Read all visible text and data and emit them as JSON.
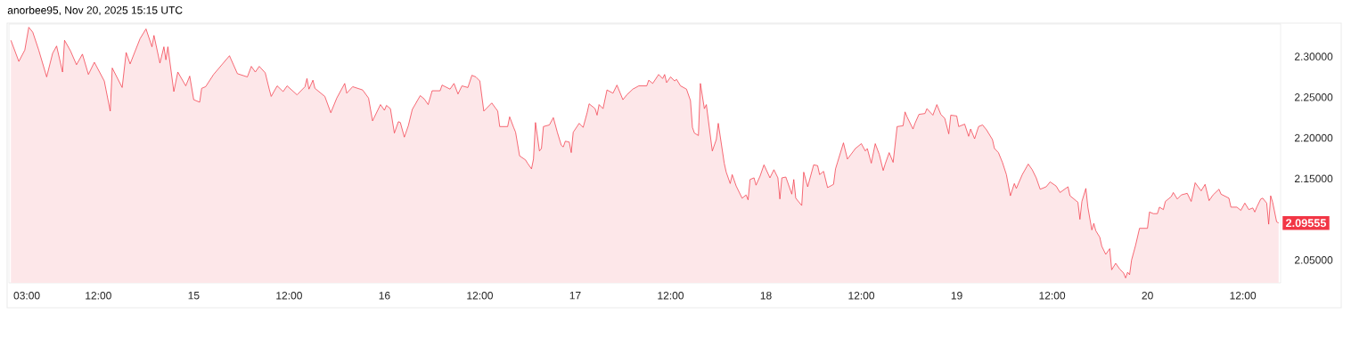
{
  "chart_data": {
    "type": "area",
    "annotations": [
      "anorbee95, Nov 20, 2025 15:15 UTC",
      {
        "text": "2.09555",
        "x": "2025-11-20T16:30",
        "y": 2.09555
      }
    ],
    "color": "#f23645",
    "x": [
      "2025-11-14T01:00",
      "2025-11-14T02:00",
      "2025-11-14T02:45",
      "2025-11-14T03:15",
      "2025-11-14T03:45",
      "2025-11-14T04:30",
      "2025-11-14T05:30",
      "2025-11-14T06:15",
      "2025-11-14T06:45",
      "2025-11-14T07:30",
      "2025-11-14T07:45",
      "2025-11-14T08:30",
      "2025-11-14T09:15",
      "2025-11-14T10:00",
      "2025-11-14T10:45",
      "2025-11-14T11:30",
      "2025-11-14T12:45",
      "2025-11-14T13:30",
      "2025-11-14T13:45",
      "2025-11-14T15:00",
      "2025-11-14T15:30",
      "2025-11-14T16:00",
      "2025-11-14T17:15",
      "2025-11-14T18:00",
      "2025-11-14T18:45",
      "2025-11-14T19:00",
      "2025-11-14T19:45",
      "2025-11-14T20:15",
      "2025-11-14T20:30",
      "2025-11-14T20:45",
      "2025-11-14T21:30",
      "2025-11-14T22:00",
      "2025-11-14T23:00",
      "2025-11-14T23:30",
      "2025-11-15T00:00",
      "2025-11-15T00:45",
      "2025-11-15T01:00",
      "2025-11-15T01:30",
      "2025-11-15T02:30",
      "2025-11-15T04:30",
      "2025-11-15T05:30",
      "2025-11-15T06:45",
      "2025-11-15T07:15",
      "2025-11-15T07:45",
      "2025-11-15T08:15",
      "2025-11-15T09:00",
      "2025-11-15T09:30",
      "2025-11-15T09:45",
      "2025-11-15T10:30",
      "2025-11-15T11:15",
      "2025-11-15T11:45",
      "2025-11-15T13:00",
      "2025-11-15T14:00",
      "2025-11-15T14:15",
      "2025-11-15T14:30",
      "2025-11-15T15:00",
      "2025-11-15T15:15",
      "2025-11-15T16:30",
      "2025-11-15T17:15",
      "2025-11-15T18:00",
      "2025-11-15T19:00",
      "2025-11-15T19:15",
      "2025-11-15T20:00",
      "2025-11-15T21:15",
      "2025-11-15T22:00",
      "2025-11-15T22:30",
      "2025-11-15T23:30",
      "2025-11-16T00:00",
      "2025-11-16T00:15",
      "2025-11-16T00:45",
      "2025-11-16T01:15",
      "2025-11-16T01:45",
      "2025-11-16T02:00",
      "2025-11-16T02:30",
      "2025-11-16T03:00",
      "2025-11-16T03:30",
      "2025-11-16T04:30",
      "2025-11-16T05:00",
      "2025-11-16T05:30",
      "2025-11-16T06:00",
      "2025-11-16T07:00",
      "2025-11-16T07:15",
      "2025-11-16T08:15",
      "2025-11-16T08:45",
      "2025-11-16T09:15",
      "2025-11-16T09:45",
      "2025-11-16T10:30",
      "2025-11-16T11:00",
      "2025-11-16T11:30",
      "2025-11-16T12:00",
      "2025-11-16T12:30",
      "2025-11-16T13:30",
      "2025-11-16T14:15",
      "2025-11-16T14:30",
      "2025-11-16T15:30",
      "2025-11-16T15:45",
      "2025-11-16T16:15",
      "2025-11-16T16:30",
      "2025-11-16T17:00",
      "2025-11-16T17:45",
      "2025-11-16T18:00",
      "2025-11-16T18:30",
      "2025-11-16T18:45",
      "2025-11-16T19:00",
      "2025-11-16T19:30",
      "2025-11-16T19:45",
      "2025-11-16T20:00",
      "2025-11-16T20:45",
      "2025-11-16T21:15",
      "2025-11-16T21:45",
      "2025-11-16T22:15",
      "2025-11-16T22:30",
      "2025-11-16T22:45",
      "2025-11-16T23:15",
      "2025-11-16T23:30",
      "2025-11-16T23:45",
      "2025-11-17T00:30",
      "2025-11-17T01:00",
      "2025-11-17T01:30",
      "2025-11-17T01:45",
      "2025-11-17T02:30",
      "2025-11-17T02:45",
      "2025-11-17T03:00",
      "2025-11-17T03:30",
      "2025-11-17T04:00",
      "2025-11-17T04:45",
      "2025-11-17T05:15",
      "2025-11-17T06:00",
      "2025-11-17T06:30",
      "2025-11-17T07:15",
      "2025-11-17T08:00",
      "2025-11-17T09:00",
      "2025-11-17T09:15",
      "2025-11-17T09:45",
      "2025-11-17T10:30",
      "2025-11-17T11:00",
      "2025-11-17T11:15",
      "2025-11-17T11:30",
      "2025-11-17T12:00",
      "2025-11-17T12:30",
      "2025-11-17T12:45",
      "2025-11-17T13:15",
      "2025-11-17T14:00",
      "2025-11-17T14:30",
      "2025-11-17T14:45",
      "2025-11-17T15:00",
      "2025-11-17T15:30",
      "2025-11-17T15:45",
      "2025-11-17T16:15",
      "2025-11-17T16:30",
      "2025-11-17T17:15",
      "2025-11-17T17:45",
      "2025-11-17T18:00",
      "2025-11-17T18:45",
      "2025-11-17T19:00",
      "2025-11-17T19:30",
      "2025-11-17T19:45",
      "2025-11-17T20:15",
      "2025-11-17T21:00",
      "2025-11-17T21:30",
      "2025-11-17T21:45",
      "2025-11-17T22:00",
      "2025-11-17T22:30",
      "2025-11-17T22:45",
      "2025-11-17T23:15",
      "2025-11-17T23:45",
      "2025-11-18T00:30",
      "2025-11-18T01:00",
      "2025-11-18T01:30",
      "2025-11-18T01:45",
      "2025-11-18T02:00",
      "2025-11-18T02:30",
      "2025-11-18T03:15",
      "2025-11-18T03:30",
      "2025-11-18T03:45",
      "2025-11-18T04:30",
      "2025-11-18T04:45",
      "2025-11-18T05:15",
      "2025-11-18T06:00",
      "2025-11-18T06:30",
      "2025-11-18T06:45",
      "2025-11-18T07:15",
      "2025-11-18T07:45",
      "2025-11-18T08:30",
      "2025-11-18T08:45",
      "2025-11-18T09:00",
      "2025-11-18T09:45",
      "2025-11-18T10:15",
      "2025-11-18T11:15",
      "2025-11-18T12:00",
      "2025-11-18T12:30",
      "2025-11-18T12:45",
      "2025-11-18T13:15",
      "2025-11-18T13:45",
      "2025-11-18T14:15",
      "2025-11-18T14:45",
      "2025-11-18T15:00",
      "2025-11-18T15:30",
      "2025-11-18T16:00",
      "2025-11-18T16:30",
      "2025-11-18T17:15",
      "2025-11-18T17:30",
      "2025-11-18T17:45",
      "2025-11-18T18:30",
      "2025-11-18T18:45",
      "2025-11-18T19:15",
      "2025-11-18T20:00",
      "2025-11-18T20:15",
      "2025-11-18T21:00",
      "2025-11-18T21:30",
      "2025-11-18T22:00",
      "2025-11-18T22:30",
      "2025-11-18T23:00",
      "2025-11-18T23:15",
      "2025-11-19T00:00",
      "2025-11-19T00:15",
      "2025-11-19T01:00",
      "2025-11-19T01:30",
      "2025-11-19T01:45",
      "2025-11-19T02:15",
      "2025-11-19T02:45",
      "2025-11-19T03:15",
      "2025-11-19T03:45",
      "2025-11-19T04:30",
      "2025-11-19T04:45",
      "2025-11-19T05:15",
      "2025-11-19T05:45",
      "2025-11-19T06:15",
      "2025-11-19T06:45",
      "2025-11-19T07:15",
      "2025-11-19T07:30",
      "2025-11-19T08:15",
      "2025-11-19T09:00",
      "2025-11-19T09:30",
      "2025-11-19T10:00",
      "2025-11-19T10:30",
      "2025-11-19T11:15",
      "2025-11-19T11:45",
      "2025-11-19T12:30",
      "2025-11-19T13:00",
      "2025-11-19T14:00",
      "2025-11-19T14:15",
      "2025-11-19T15:00",
      "2025-11-19T15:15",
      "2025-11-19T15:30",
      "2025-11-19T15:45",
      "2025-11-19T16:15",
      "2025-11-19T16:30",
      "2025-11-19T17:00",
      "2025-11-19T17:15",
      "2025-11-19T17:30",
      "2025-11-19T18:00",
      "2025-11-19T18:15",
      "2025-11-19T18:45",
      "2025-11-19T19:15",
      "2025-11-19T19:30",
      "2025-11-19T20:00",
      "2025-11-19T20:30",
      "2025-11-19T21:00",
      "2025-11-19T21:15",
      "2025-11-19T21:30",
      "2025-11-19T21:45",
      "2025-11-19T22:00",
      "2025-11-19T22:30",
      "2025-11-19T23:00",
      "2025-11-19T23:30",
      "2025-11-20T00:00",
      "2025-11-20T00:15",
      "2025-11-20T00:45",
      "2025-11-20T01:15",
      "2025-11-20T01:30",
      "2025-11-20T02:00",
      "2025-11-20T02:15",
      "2025-11-20T03:00",
      "2025-11-20T03:15",
      "2025-11-20T03:45",
      "2025-11-20T04:15",
      "2025-11-20T05:00",
      "2025-11-20T05:30",
      "2025-11-20T06:00",
      "2025-11-20T06:45",
      "2025-11-20T07:15",
      "2025-11-20T07:45",
      "2025-11-20T08:15",
      "2025-11-20T09:00",
      "2025-11-20T09:15",
      "2025-11-20T10:15",
      "2025-11-20T10:30",
      "2025-11-20T11:15",
      "2025-11-20T11:45",
      "2025-11-20T12:15",
      "2025-11-20T12:45",
      "2025-11-20T13:15",
      "2025-11-20T13:30",
      "2025-11-20T13:45",
      "2025-11-20T14:15",
      "2025-11-20T14:30",
      "2025-11-20T15:00",
      "2025-11-20T15:15",
      "2025-11-20T15:30",
      "2025-11-20T15:45",
      "2025-11-20T16:15",
      "2025-11-20T16:30"
    ],
    "values": [
      2.32,
      2.294,
      2.308,
      2.336,
      2.33,
      2.308,
      2.275,
      2.304,
      2.313,
      2.281,
      2.32,
      2.307,
      2.29,
      2.303,
      2.278,
      2.293,
      2.27,
      2.233,
      2.286,
      2.262,
      2.305,
      2.291,
      2.322,
      2.334,
      2.312,
      2.326,
      2.292,
      2.312,
      2.296,
      2.312,
      2.257,
      2.281,
      2.264,
      2.276,
      2.247,
      2.244,
      2.261,
      2.263,
      2.278,
      2.301,
      2.279,
      2.275,
      2.288,
      2.281,
      2.288,
      2.28,
      2.26,
      2.251,
      2.264,
      2.257,
      2.264,
      2.253,
      2.263,
      2.273,
      2.26,
      2.271,
      2.261,
      2.251,
      2.231,
      2.249,
      2.267,
      2.255,
      2.263,
      2.259,
      2.249,
      2.221,
      2.241,
      2.234,
      2.24,
      2.236,
      2.206,
      2.22,
      2.219,
      2.201,
      2.215,
      2.235,
      2.252,
      2.248,
      2.241,
      2.258,
      2.258,
      2.265,
      2.26,
      2.267,
      2.254,
      2.264,
      2.262,
      2.277,
      2.275,
      2.27,
      2.233,
      2.243,
      2.233,
      2.214,
      2.214,
      2.226,
      2.213,
      2.207,
      2.178,
      2.173,
      2.169,
      2.162,
      2.174,
      2.219,
      2.184,
      2.187,
      2.214,
      2.216,
      2.225,
      2.207,
      2.191,
      2.189,
      2.196,
      2.195,
      2.182,
      2.207,
      2.218,
      2.213,
      2.231,
      2.242,
      2.236,
      2.228,
      2.241,
      2.236,
      2.259,
      2.255,
      2.265,
      2.247,
      2.253,
      2.26,
      2.264,
      2.264,
      2.271,
      2.267,
      2.278,
      2.273,
      2.278,
      2.268,
      2.275,
      2.27,
      2.272,
      2.264,
      2.26,
      2.246,
      2.213,
      2.206,
      2.203,
      2.267,
      2.236,
      2.241,
      2.184,
      2.198,
      2.218,
      2.169,
      2.158,
      2.144,
      2.155,
      2.141,
      2.126,
      2.13,
      2.124,
      2.149,
      2.151,
      2.142,
      2.153,
      2.167,
      2.151,
      2.161,
      2.151,
      2.125,
      2.151,
      2.152,
      2.131,
      2.149,
      2.126,
      2.117,
      2.158,
      2.14,
      2.167,
      2.166,
      2.155,
      2.159,
      2.139,
      2.143,
      2.162,
      2.17,
      2.194,
      2.174,
      2.187,
      2.193,
      2.184,
      2.187,
      2.169,
      2.193,
      2.18,
      2.16,
      2.168,
      2.182,
      2.17,
      2.214,
      2.215,
      2.232,
      2.226,
      2.211,
      2.218,
      2.229,
      2.23,
      2.236,
      2.228,
      2.241,
      2.229,
      2.224,
      2.205,
      2.228,
      2.227,
      2.214,
      2.217,
      2.202,
      2.211,
      2.199,
      2.214,
      2.216,
      2.21,
      2.198,
      2.187,
      2.182,
      2.17,
      2.155,
      2.129,
      2.144,
      2.138,
      2.155,
      2.168,
      2.161,
      2.151,
      2.137,
      2.14,
      2.146,
      2.141,
      2.133,
      2.14,
      2.129,
      2.123,
      2.121,
      2.1,
      2.122,
      2.138,
      2.115,
      2.087,
      2.095,
      2.086,
      2.078,
      2.067,
      2.057,
      2.064,
      2.038,
      2.046,
      2.039,
      2.034,
      2.028,
      2.035,
      2.032,
      2.05,
      2.068,
      2.089,
      2.089,
      2.089,
      2.109,
      2.107,
      2.107,
      2.115,
      2.112,
      2.122,
      2.128,
      2.133,
      2.125,
      2.13,
      2.132,
      2.122,
      2.145,
      2.135,
      2.143,
      2.123,
      2.13,
      2.137,
      2.131,
      2.126,
      2.115,
      2.115,
      2.111,
      2.12,
      2.112,
      2.114,
      2.109,
      2.115,
      2.125,
      2.126,
      2.12,
      2.094,
      2.129,
      2.121,
      2.097,
      2.09555
    ],
    "xlim": [
      "2025-11-14T00:45",
      "2025-11-20T16:45"
    ],
    "xticks": [
      {
        "value": "2025-11-14T03:00",
        "label": "03:00"
      },
      {
        "value": "2025-11-14T12:00",
        "label": "12:00"
      },
      {
        "value": "2025-11-15T00:00",
        "label": "15"
      },
      {
        "value": "2025-11-15T12:00",
        "label": "12:00"
      },
      {
        "value": "2025-11-16T00:00",
        "label": "16"
      },
      {
        "value": "2025-11-16T12:00",
        "label": "12:00"
      },
      {
        "value": "2025-11-17T00:00",
        "label": "17"
      },
      {
        "value": "2025-11-17T12:00",
        "label": "12:00"
      },
      {
        "value": "2025-11-18T00:00",
        "label": "18"
      },
      {
        "value": "2025-11-18T12:00",
        "label": "12:00"
      },
      {
        "value": "2025-11-19T00:00",
        "label": "19"
      },
      {
        "value": "2025-11-19T12:00",
        "label": "12:00"
      },
      {
        "value": "2025-11-20T00:00",
        "label": "20"
      },
      {
        "value": "2025-11-20T12:00",
        "label": "12:00"
      }
    ],
    "ylim": [
      2.022,
      2.34
    ],
    "yticks": [
      {
        "value": 2.05,
        "label": "2.05000"
      },
      {
        "value": 2.15,
        "label": "2.15000"
      },
      {
        "value": 2.2,
        "label": "2.20000"
      },
      {
        "value": 2.25,
        "label": "2.25000"
      },
      {
        "value": 2.3,
        "label": "2.30000"
      }
    ]
  }
}
